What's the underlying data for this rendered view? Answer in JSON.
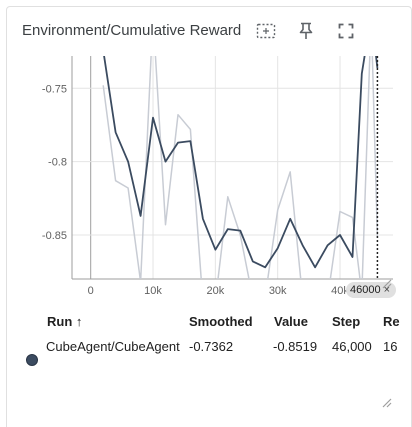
{
  "header": {
    "title": "Environment/Cumulative Reward",
    "icons": [
      "fit-domain-icon",
      "pin-icon",
      "fullscreen-icon"
    ]
  },
  "chart_data": {
    "type": "line",
    "title": "",
    "xlabel": "",
    "ylabel": "",
    "xlim": [
      -3000,
      48500
    ],
    "ylim": [
      -0.88,
      -0.728
    ],
    "x_ticks": [
      0,
      10000,
      20000,
      30000,
      40000
    ],
    "x_tick_labels": [
      "0",
      "10k",
      "20k",
      "30k",
      "40k"
    ],
    "y_ticks": [
      -0.75,
      -0.8,
      -0.85
    ],
    "y_tick_labels": [
      "-0.75",
      "-0.8",
      "-0.85"
    ],
    "grid": true,
    "hover_x": 46000,
    "series": [
      {
        "name": "raw",
        "color": "#c8ccd4",
        "x": [
          2000,
          4000,
          6000,
          8000,
          10000,
          12000,
          14000,
          16000,
          18000,
          20000,
          22000,
          24000,
          26000,
          28000,
          30000,
          32000,
          34000,
          36000,
          38000,
          40000,
          42000,
          43500,
          45000,
          46000
        ],
        "y": [
          -0.748,
          -0.813,
          -0.818,
          -0.882,
          -0.7,
          -0.843,
          -0.768,
          -0.778,
          -0.896,
          -0.895,
          -0.824,
          -0.85,
          -0.893,
          -0.892,
          -0.833,
          -0.807,
          -0.893,
          -0.883,
          -0.893,
          -0.834,
          -0.838,
          -0.89,
          -0.7,
          -0.8519
        ]
      },
      {
        "name": "smoothed",
        "color": "#3b4b60",
        "x": [
          2000,
          4000,
          6000,
          8000,
          10000,
          12000,
          14000,
          16000,
          18000,
          20000,
          22000,
          24000,
          26000,
          28000,
          30000,
          32000,
          34000,
          36000,
          38000,
          40000,
          42000,
          43500,
          45000,
          46000
        ],
        "y": [
          -0.724,
          -0.78,
          -0.8,
          -0.837,
          -0.77,
          -0.8,
          -0.787,
          -0.786,
          -0.839,
          -0.86,
          -0.846,
          -0.847,
          -0.868,
          -0.872,
          -0.859,
          -0.839,
          -0.857,
          -0.872,
          -0.857,
          -0.85,
          -0.865,
          -0.74,
          -0.7,
          -0.7362
        ]
      }
    ]
  },
  "hover_chip": {
    "label": "46000",
    "close": "×"
  },
  "table": {
    "headers": {
      "run": "Run",
      "sort": "↑",
      "smoothed": "Smoothed",
      "value": "Value",
      "step": "Step",
      "relative": "Re"
    },
    "rows": [
      {
        "color": "#3b4b60",
        "run": "CubeAgent/CubeAgent",
        "smoothed": "-0.7362",
        "value": "-0.8519",
        "step": "46,000",
        "relative": "16"
      }
    ]
  }
}
